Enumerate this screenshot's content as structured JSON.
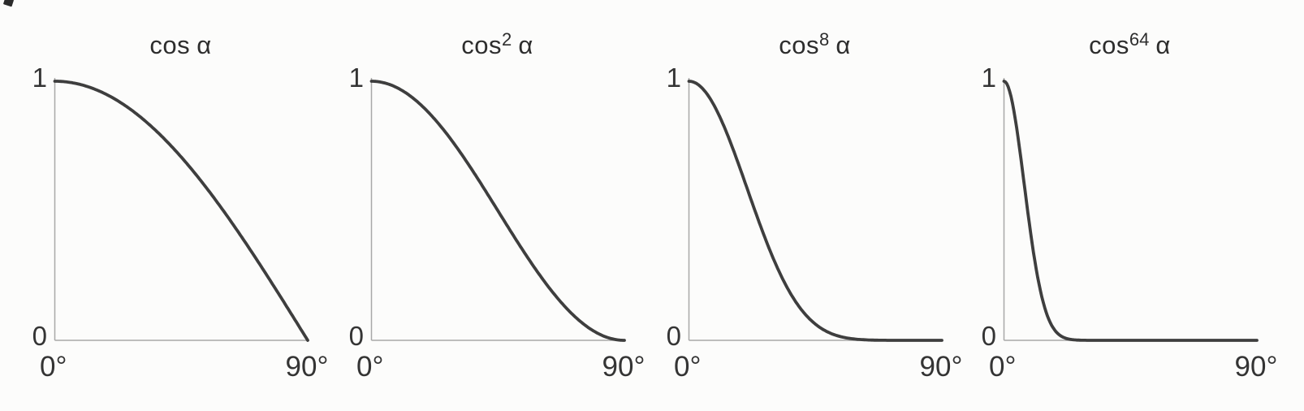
{
  "figure": {
    "description": "Four side-by-side plots of powers of the cosine function over 0 to 90 degrees",
    "background_color": "#fcfcfb",
    "curve_color": "#3e3e3e",
    "axis_color": "#a8a8a8",
    "text_color": "#2f2f2f",
    "panels": [
      {
        "title_base": "cos",
        "exponent": "",
        "alpha_symbol": "α",
        "y_top_label": "1",
        "y_bottom_label": "0",
        "x_left_label": "0°",
        "x_right_label": "90°"
      },
      {
        "title_base": "cos",
        "exponent": "2",
        "alpha_symbol": "α",
        "y_top_label": "1",
        "y_bottom_label": "0",
        "x_left_label": "0°",
        "x_right_label": "90°"
      },
      {
        "title_base": "cos",
        "exponent": "8",
        "alpha_symbol": "α",
        "y_top_label": "1",
        "y_bottom_label": "0",
        "x_left_label": "0°",
        "x_right_label": "90°"
      },
      {
        "title_base": "cos",
        "exponent": "64",
        "alpha_symbol": "α",
        "y_top_label": "1",
        "y_bottom_label": "0",
        "x_left_label": "0°",
        "x_right_label": "90°"
      }
    ]
  },
  "chart_data": [
    {
      "type": "line",
      "title": "cos α",
      "function": "cos(α)^n",
      "exponent": 1,
      "xlim": [
        0,
        90
      ],
      "ylim": [
        0,
        1
      ],
      "x_tick_labels": [
        "0°",
        "90°"
      ],
      "y_tick_labels": [
        "0",
        "1"
      ],
      "grid": false,
      "legend": "none",
      "x": [
        0,
        5,
        10,
        15,
        20,
        25,
        30,
        35,
        40,
        45,
        50,
        55,
        60,
        65,
        70,
        75,
        80,
        85,
        90
      ],
      "values": [
        1,
        0.996,
        0.985,
        0.966,
        0.94,
        0.906,
        0.866,
        0.819,
        0.766,
        0.707,
        0.643,
        0.574,
        0.5,
        0.423,
        0.342,
        0.259,
        0.174,
        0.087,
        0
      ]
    },
    {
      "type": "line",
      "title": "cos² α",
      "function": "cos(α)^n",
      "exponent": 2,
      "xlim": [
        0,
        90
      ],
      "ylim": [
        0,
        1
      ],
      "x_tick_labels": [
        "0°",
        "90°"
      ],
      "y_tick_labels": [
        "0",
        "1"
      ],
      "grid": false,
      "legend": "none",
      "x": [
        0,
        5,
        10,
        15,
        20,
        25,
        30,
        35,
        40,
        45,
        50,
        55,
        60,
        65,
        70,
        75,
        80,
        85,
        90
      ],
      "values": [
        1,
        0.992,
        0.97,
        0.933,
        0.883,
        0.821,
        0.75,
        0.671,
        0.587,
        0.5,
        0.413,
        0.329,
        0.25,
        0.179,
        0.117,
        0.067,
        0.03,
        0.008,
        0
      ]
    },
    {
      "type": "line",
      "title": "cos⁸ α",
      "function": "cos(α)^n",
      "exponent": 8,
      "xlim": [
        0,
        90
      ],
      "ylim": [
        0,
        1
      ],
      "x_tick_labels": [
        "0°",
        "90°"
      ],
      "y_tick_labels": [
        "0",
        "1"
      ],
      "grid": false,
      "legend": "none",
      "x": [
        0,
        5,
        10,
        15,
        20,
        25,
        30,
        35,
        40,
        45,
        50,
        55,
        60,
        65,
        70,
        75,
        80,
        85,
        90
      ],
      "values": [
        1,
        0.97,
        0.885,
        0.758,
        0.608,
        0.455,
        0.316,
        0.203,
        0.119,
        0.063,
        0.029,
        0.012,
        0.004,
        0.001,
        0,
        0,
        0,
        0,
        0
      ]
    },
    {
      "type": "line",
      "title": "cos⁶⁴ α",
      "function": "cos(α)^n",
      "exponent": 64,
      "xlim": [
        0,
        90
      ],
      "ylim": [
        0,
        1
      ],
      "x_tick_labels": [
        "0°",
        "90°"
      ],
      "y_tick_labels": [
        "0",
        "1"
      ],
      "grid": false,
      "legend": "none",
      "x": [
        0,
        5,
        10,
        15,
        20,
        25,
        30,
        35,
        40,
        45,
        50,
        55,
        60,
        65,
        70,
        75,
        80,
        85,
        90
      ],
      "values": [
        1,
        0.783,
        0.375,
        0.109,
        0.019,
        0.002,
        0,
        0,
        0,
        0,
        0,
        0,
        0,
        0,
        0,
        0,
        0,
        0,
        0
      ]
    }
  ]
}
